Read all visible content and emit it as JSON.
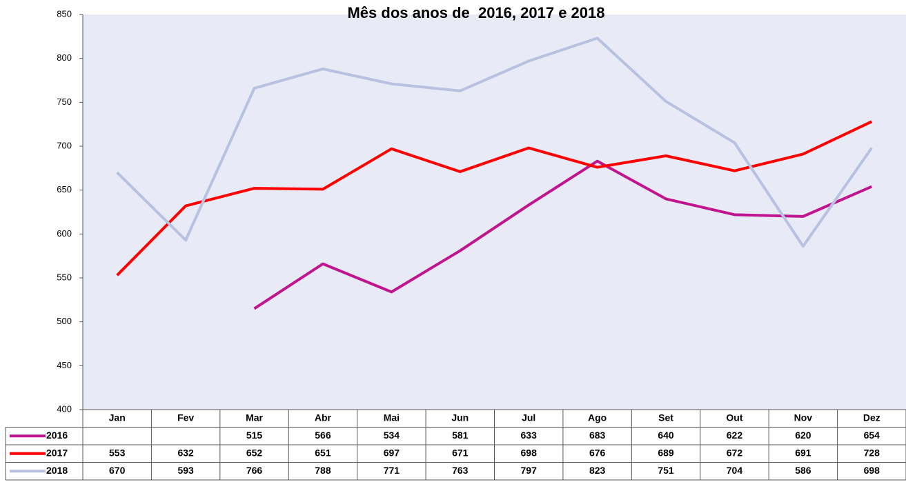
{
  "chart_data": {
    "type": "line",
    "title": "Mês dos anos de  2016, 2017 e 2018",
    "categories": [
      "Jan",
      "Fev",
      "Mar",
      "Abr",
      "Mai",
      "Jun",
      "Jul",
      "Ago",
      "Set",
      "Out",
      "Nov",
      "Dez"
    ],
    "series": [
      {
        "name": "2016",
        "color": "#c0158f",
        "values": [
          null,
          null,
          515,
          566,
          534,
          581,
          633,
          683,
          640,
          622,
          620,
          654
        ]
      },
      {
        "name": "2017",
        "color": "#ff0000",
        "values": [
          553,
          632,
          652,
          651,
          697,
          671,
          698,
          676,
          689,
          672,
          691,
          728
        ]
      },
      {
        "name": "2018",
        "color": "#b9c1e1",
        "values": [
          670,
          593,
          766,
          788,
          771,
          763,
          797,
          823,
          751,
          704,
          586,
          698
        ]
      }
    ],
    "ylim": [
      400,
      850
    ],
    "yticks": [
      400,
      450,
      500,
      550,
      600,
      650,
      700,
      750,
      800,
      850
    ],
    "grid": false
  }
}
